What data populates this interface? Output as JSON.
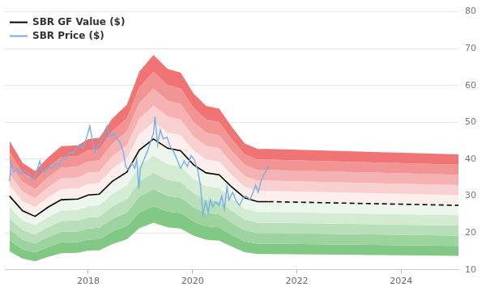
{
  "chart_data": {
    "type": "line",
    "series": [
      {
        "name": "SBR GF Value ($)",
        "color": "#000000",
        "line_style": "solid",
        "x": [
          2016.49,
          2016.74,
          2016.98,
          2017.23,
          2017.48,
          2017.8,
          2018.0,
          2018.21,
          2018.46,
          2018.74,
          2018.98,
          2019.25,
          2019.52,
          2019.77,
          2020.02,
          2020.26,
          2020.51,
          2020.75,
          2021.0,
          2021.25,
          2021.46,
          2025.1
        ],
        "values": [
          30,
          26,
          24.5,
          27,
          29,
          29.2,
          30.3,
          30.5,
          34,
          36.5,
          42.5,
          45.5,
          43,
          42.3,
          38.5,
          36.3,
          35.8,
          32.5,
          29.5,
          28.5,
          28.5,
          27.5
        ]
      },
      {
        "name": "SBR Price ($)",
        "color": "#77aee6",
        "line_style": "solid",
        "x": [
          2016.49,
          2016.52,
          2016.57,
          2016.64,
          2016.7,
          2016.79,
          2016.87,
          2016.93,
          2017.0,
          2017.07,
          2017.11,
          2017.18,
          2017.25,
          2017.31,
          2017.38,
          2017.44,
          2017.51,
          2017.57,
          2017.64,
          2017.7,
          2017.77,
          2017.84,
          2017.9,
          2017.97,
          2018.03,
          2018.08,
          2018.13,
          2018.18,
          2018.25,
          2018.31,
          2018.36,
          2018.41,
          2018.48,
          2018.54,
          2018.61,
          2018.67,
          2018.72,
          2018.77,
          2018.84,
          2018.89,
          2018.93,
          2018.97,
          2019.0,
          2019.07,
          2019.13,
          2019.2,
          2019.25,
          2019.28,
          2019.33,
          2019.38,
          2019.44,
          2019.51,
          2019.57,
          2019.64,
          2019.7,
          2019.77,
          2019.84,
          2019.9,
          2019.97,
          2020.03,
          2020.1,
          2020.15,
          2020.2,
          2020.25,
          2020.3,
          2020.34,
          2020.39,
          2020.44,
          2020.51,
          2020.56,
          2020.61,
          2020.66,
          2020.7,
          2020.77,
          2020.84,
          2020.9,
          2020.97,
          2021.03,
          2021.1,
          2021.16,
          2021.21,
          2021.26,
          2021.31,
          2021.36,
          2021.41,
          2021.46
        ],
        "values": [
          34,
          39,
          36.5,
          37.5,
          36,
          37,
          35.5,
          34.5,
          36,
          39.5,
          37,
          36.5,
          38,
          37.5,
          39,
          38.5,
          40.5,
          40,
          42,
          41.5,
          43,
          44,
          43,
          46,
          49,
          45,
          42,
          43.5,
          45,
          47.5,
          49,
          46,
          47,
          46,
          44.5,
          42,
          38,
          37,
          39,
          37.5,
          40,
          32,
          37.5,
          40,
          42,
          45,
          47,
          51.5,
          44,
          48,
          45.5,
          46,
          43.5,
          42,
          40,
          37.5,
          39.5,
          38,
          41,
          40,
          37,
          33,
          25,
          28.5,
          25.5,
          29,
          27,
          28.5,
          27.5,
          30,
          26.5,
          32.5,
          29,
          31,
          28.5,
          27.5,
          29.5,
          30,
          29,
          31,
          33,
          31,
          34,
          35.5,
          37,
          38
        ]
      }
    ],
    "bands": [
      {
        "color": "#f07474",
        "values": [
          45,
          39,
          36.8,
          40.5,
          43.5,
          43.8,
          45.5,
          45.8,
          51,
          54.8,
          63.8,
          68.3,
          64.5,
          63.5,
          57.8,
          54.5,
          53.7,
          48.8,
          44.3,
          42.8,
          42.8,
          41.3
        ]
      },
      {
        "color": "#f39494",
        "values": [
          42,
          36.4,
          34.3,
          37.8,
          40.6,
          40.9,
          42.4,
          42.7,
          47.6,
          51.1,
          59.5,
          63.7,
          60.2,
          59.2,
          53.9,
          50.8,
          50.1,
          45.5,
          41.3,
          39.9,
          39.9,
          38.5
        ]
      },
      {
        "color": "#f6b2b2",
        "values": [
          39,
          33.8,
          31.9,
          35.1,
          37.7,
          38,
          39.4,
          39.7,
          44.2,
          47.5,
          55.3,
          59.2,
          55.9,
          55,
          50.1,
          47.2,
          46.5,
          42.3,
          38.4,
          37.1,
          37.1,
          35.8
        ]
      },
      {
        "color": "#f9d0d0",
        "values": [
          36,
          31.2,
          29.4,
          32.4,
          34.8,
          35,
          36.4,
          36.6,
          40.8,
          43.8,
          51,
          54.6,
          51.6,
          50.8,
          46.2,
          43.6,
          43,
          39,
          35.4,
          34.2,
          34.2,
          33
        ]
      },
      {
        "color": "#fdeeee",
        "values": [
          33,
          28.6,
          27,
          29.7,
          31.9,
          32.1,
          33.3,
          33.6,
          37.4,
          40.2,
          46.8,
          50.1,
          47.3,
          46.5,
          42.4,
          39.9,
          39.4,
          35.8,
          32.5,
          31.4,
          31.4,
          30.3
        ]
      },
      {
        "color": "#ecf6ec",
        "values": [
          27,
          23.4,
          22.1,
          24.3,
          26.1,
          26.3,
          27.3,
          27.5,
          30.6,
          32.9,
          38.3,
          41,
          38.7,
          38.1,
          34.7,
          32.7,
          32.2,
          29.3,
          26.6,
          25.7,
          25.7,
          24.8
        ]
      },
      {
        "color": "#d3ebd3",
        "values": [
          24,
          20.8,
          19.6,
          21.6,
          23.2,
          23.4,
          24.2,
          24.4,
          27.2,
          29.2,
          34,
          36.4,
          34.4,
          33.8,
          30.8,
          29,
          28.6,
          26,
          23.6,
          22.8,
          22.8,
          22
        ]
      },
      {
        "color": "#b8dfb9",
        "values": [
          21,
          18.2,
          17.2,
          18.9,
          20.3,
          20.4,
          21.2,
          21.4,
          23.8,
          25.6,
          29.8,
          31.9,
          30.1,
          29.6,
          27,
          25.4,
          25.1,
          22.8,
          20.7,
          20,
          20,
          19.3
        ]
      },
      {
        "color": "#9dd39f",
        "values": [
          18,
          15.6,
          14.7,
          16.2,
          17.4,
          17.5,
          18.2,
          18.3,
          20.4,
          21.9,
          25.5,
          27.3,
          25.8,
          25.4,
          23.1,
          21.8,
          21.5,
          19.5,
          17.7,
          17.1,
          17.1,
          16.5
        ]
      },
      {
        "color": "#80c883",
        "values": [
          15,
          13,
          12.3,
          13.5,
          14.5,
          14.6,
          15.2,
          15.3,
          17,
          18.3,
          21.3,
          22.8,
          21.5,
          21.2,
          19.3,
          18.2,
          17.9,
          16.3,
          14.8,
          14.3,
          14.3,
          13.8
        ]
      }
    ],
    "xlim": [
      2016.4,
      2025.1
    ],
    "xticks": [
      2018,
      2020,
      2022,
      2024
    ],
    "ylim": [
      10,
      80
    ],
    "yticks": [
      10,
      20,
      30,
      40,
      50,
      60,
      70,
      80
    ],
    "grid": true,
    "legend": "upper left"
  }
}
